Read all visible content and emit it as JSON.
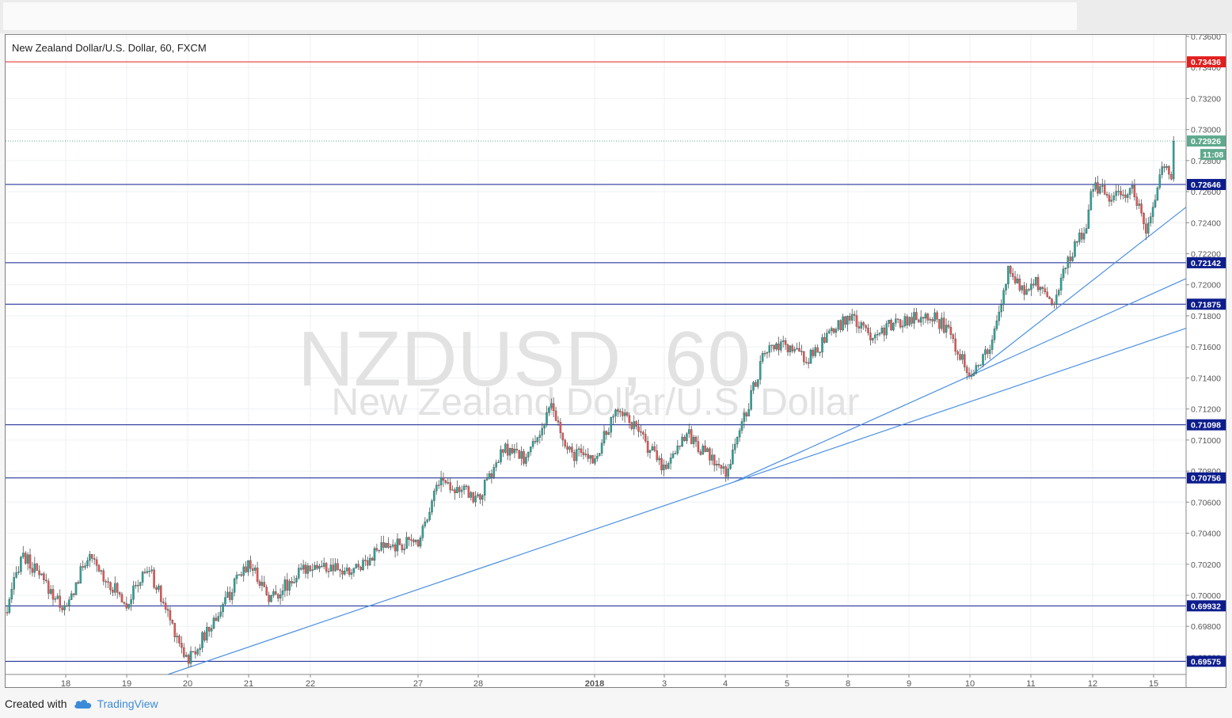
{
  "header": {
    "title": "New Zealand Dollar/U.S. Dollar, 60, FXCM"
  },
  "watermark": {
    "symbol": "NZDUSD, 60",
    "name": "New Zealand Dollar/U.S. Dollar"
  },
  "footer": {
    "created_with": "Created with",
    "brand": "TradingView",
    "icon": "cloud-icon"
  },
  "colors": {
    "up": "#26a69a",
    "down": "#ef5350",
    "support": "#0d1d8c",
    "resistance": "#e31e1e",
    "trendline": "#4a90e2",
    "current": "#5fa98e"
  },
  "chart_data": {
    "type": "candlestick",
    "symbol": "NZDUSD",
    "interval": "60",
    "source": "FXCM",
    "y_tick_labels": [
      "0.73600",
      "0.73400",
      "0.73200",
      "0.73000",
      "0.72800",
      "0.72600",
      "0.72400",
      "0.72200",
      "0.72000",
      "0.71800",
      "0.71600",
      "0.71400",
      "0.71200",
      "0.71000",
      "0.70800",
      "0.70600",
      "0.70400",
      "0.70200",
      "0.70000",
      "0.69800",
      "0.69600"
    ],
    "x_tick_labels": [
      "18",
      "19",
      "20",
      "21",
      "22",
      "27",
      "28",
      "2018",
      "3",
      "4",
      "5",
      "8",
      "9",
      "10",
      "11",
      "12",
      "15"
    ],
    "ylim": [
      0.6949,
      0.7361
    ],
    "horizontal_levels": [
      {
        "value": 0.73436,
        "label": "0.73436",
        "kind": "resistance"
      },
      {
        "value": 0.72646,
        "label": "0.72646",
        "kind": "support"
      },
      {
        "value": 0.72142,
        "label": "0.72142",
        "kind": "support"
      },
      {
        "value": 0.71875,
        "label": "0.71875",
        "kind": "support"
      },
      {
        "value": 0.71098,
        "label": "0.71098",
        "kind": "support"
      },
      {
        "value": 0.70756,
        "label": "0.70756",
        "kind": "support"
      },
      {
        "value": 0.69932,
        "label": "0.69932",
        "kind": "support"
      },
      {
        "value": 0.69575,
        "label": "0.69575",
        "kind": "support"
      }
    ],
    "last_price": {
      "value": 0.72926,
      "label": "0.72926",
      "countdown": "11:08"
    },
    "trendlines": [
      {
        "from": {
          "date": "19",
          "price": 0.6949
        },
        "to": {
          "date": "15",
          "price": 0.7172
        }
      },
      {
        "from": {
          "date": "4",
          "price": 0.7073
        },
        "to": {
          "date": "15",
          "price": 0.7204
        }
      },
      {
        "from": {
          "date": "10",
          "price": 0.7141
        },
        "to": {
          "date": "15",
          "price": 0.725
        }
      }
    ],
    "anchors": [
      {
        "date": "17",
        "price": 0.6989
      },
      {
        "date": "17",
        "price": 0.7027
      },
      {
        "date": "18",
        "price": 0.699
      },
      {
        "date": "18",
        "price": 0.7025
      },
      {
        "date": "19",
        "price": 0.6995
      },
      {
        "date": "19",
        "price": 0.7018
      },
      {
        "date": "20",
        "price": 0.6958
      },
      {
        "date": "20",
        "price": 0.6978
      },
      {
        "date": "21",
        "price": 0.7022
      },
      {
        "date": "21",
        "price": 0.6998
      },
      {
        "date": "22",
        "price": 0.702
      },
      {
        "date": "22",
        "price": 0.7014
      },
      {
        "date": "22",
        "price": 0.703
      },
      {
        "date": "27",
        "price": 0.7035
      },
      {
        "date": "27",
        "price": 0.7075
      },
      {
        "date": "28",
        "price": 0.7062
      },
      {
        "date": "28",
        "price": 0.7094
      },
      {
        "date": "28",
        "price": 0.7088
      },
      {
        "date": "29",
        "price": 0.7121
      },
      {
        "date": "29",
        "price": 0.7092
      },
      {
        "date": "2018",
        "price": 0.7088
      },
      {
        "date": "2018",
        "price": 0.7122
      },
      {
        "date": "2018",
        "price": 0.7103
      },
      {
        "date": "3",
        "price": 0.7082
      },
      {
        "date": "3",
        "price": 0.7105
      },
      {
        "date": "4",
        "price": 0.7078
      },
      {
        "date": "4",
        "price": 0.712
      },
      {
        "date": "4",
        "price": 0.7158
      },
      {
        "date": "5",
        "price": 0.716
      },
      {
        "date": "5",
        "price": 0.7152
      },
      {
        "date": "5",
        "price": 0.7165
      },
      {
        "date": "8",
        "price": 0.718
      },
      {
        "date": "8",
        "price": 0.7168
      },
      {
        "date": "9",
        "price": 0.7178
      },
      {
        "date": "9",
        "price": 0.7182
      },
      {
        "date": "9",
        "price": 0.717
      },
      {
        "date": "10",
        "price": 0.7143
      },
      {
        "date": "10",
        "price": 0.716
      },
      {
        "date": "10",
        "price": 0.7212
      },
      {
        "date": "10",
        "price": 0.7193
      },
      {
        "date": "11",
        "price": 0.7205
      },
      {
        "date": "11",
        "price": 0.7188
      },
      {
        "date": "11",
        "price": 0.722
      },
      {
        "date": "11",
        "price": 0.7238
      },
      {
        "date": "12",
        "price": 0.7265
      },
      {
        "date": "12",
        "price": 0.7255
      },
      {
        "date": "12",
        "price": 0.7262
      },
      {
        "date": "12",
        "price": 0.7235
      },
      {
        "date": "15",
        "price": 0.725
      },
      {
        "date": "15",
        "price": 0.7278
      },
      {
        "date": "15",
        "price": 0.727
      },
      {
        "date": "15",
        "price": 0.72926
      }
    ]
  }
}
